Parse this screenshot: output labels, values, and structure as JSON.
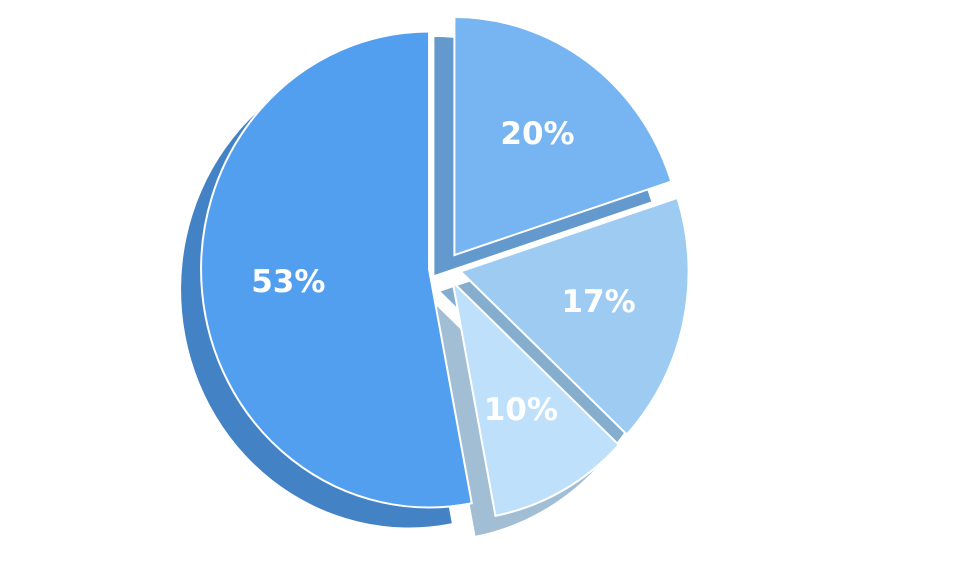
{
  "chart_data": {
    "type": "pie",
    "values": [
      20,
      17,
      10,
      53
    ],
    "value_labels": [
      "20%",
      "17%",
      "10%",
      "53%"
    ],
    "colors": [
      "#76b4f2",
      "#9dcbf2",
      "#bfe0fa",
      "#529fef"
    ]
  }
}
